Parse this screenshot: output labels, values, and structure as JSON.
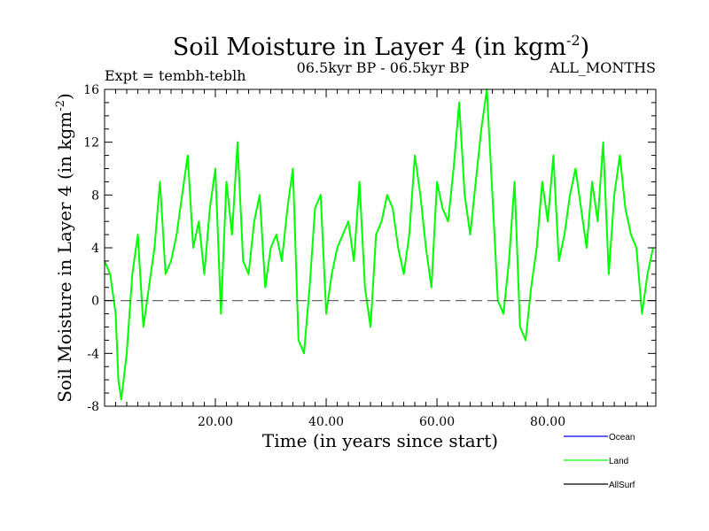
{
  "chart_data": {
    "type": "line",
    "title_main": "Soil Moisture in Layer 4 (in kgm",
    "title_sup": "-2",
    "title_close": ")",
    "expt_label": "Expt = tembh-teblh",
    "period_label": "06.5kyr BP - 06.5kyr BP",
    "season_label": "ALL_MONTHS",
    "xlabel": "Time (in years since start)",
    "ylabel_main": "Soil Moisture in Layer 4 (in kgm",
    "ylabel_sup": "-2",
    "ylabel_close": ")",
    "xlim": [
      0,
      99.5
    ],
    "ylim": [
      -8,
      16
    ],
    "xticks": [
      20,
      40,
      60,
      80
    ],
    "xtick_labels": [
      "20.00",
      "40.00",
      "60.00",
      "80.00"
    ],
    "yticks": [
      -8,
      -4,
      0,
      4,
      8,
      12,
      16
    ],
    "ytick_labels": [
      "-8",
      "-4",
      "0",
      "4",
      "8",
      "12",
      "16"
    ],
    "reference_line": 0,
    "legend": [
      {
        "name": "Ocean",
        "color": "#0000ff"
      },
      {
        "name": "Land",
        "color": "#00ff00"
      },
      {
        "name": "AllSurf",
        "color": "#000000"
      }
    ],
    "series": [
      {
        "name": "Land",
        "color": "#00ff00",
        "x": [
          0,
          1,
          2,
          2.5,
          3,
          4,
          5,
          6,
          7,
          8,
          9,
          10,
          11,
          12,
          13,
          14,
          15,
          16,
          17,
          18,
          19,
          20,
          21,
          22,
          23,
          24,
          25,
          26,
          27,
          28,
          29,
          30,
          31,
          32,
          33,
          34,
          35,
          36,
          37,
          38,
          39,
          40,
          41,
          42,
          43,
          44,
          45,
          46,
          47,
          48,
          49,
          50,
          51,
          52,
          53,
          54,
          55,
          56,
          57,
          58,
          59,
          60,
          61,
          62,
          63,
          64,
          65,
          66,
          67,
          68,
          69,
          70,
          71,
          72,
          73,
          74,
          75,
          76,
          77,
          78,
          79,
          80,
          81,
          82,
          83,
          84,
          85,
          86,
          87,
          88,
          89,
          90,
          91,
          92,
          93,
          94,
          95,
          96,
          97,
          98,
          99
        ],
        "values": [
          3,
          2,
          -1,
          -6,
          -7.5,
          -4,
          2,
          5,
          -2,
          1,
          4,
          9,
          2,
          3,
          5,
          8,
          11,
          4,
          6,
          2,
          7,
          10,
          -1,
          9,
          5,
          12,
          3,
          2,
          6,
          8,
          1,
          4,
          5,
          3,
          7,
          10,
          -3,
          -4,
          1,
          7,
          8,
          -1,
          2,
          4,
          5,
          6,
          3,
          9,
          1,
          -2,
          5,
          6,
          8,
          7,
          4,
          2,
          5,
          11,
          8,
          4,
          1,
          9,
          7,
          6,
          10,
          15,
          8,
          5,
          9,
          13,
          16,
          8,
          0,
          -1,
          3,
          9,
          -2,
          -3,
          1,
          4,
          9,
          6,
          11,
          3,
          5,
          8,
          10,
          7,
          4,
          9,
          6,
          12,
          2,
          8,
          11,
          7,
          5,
          4,
          -1,
          2,
          4
        ]
      }
    ]
  }
}
